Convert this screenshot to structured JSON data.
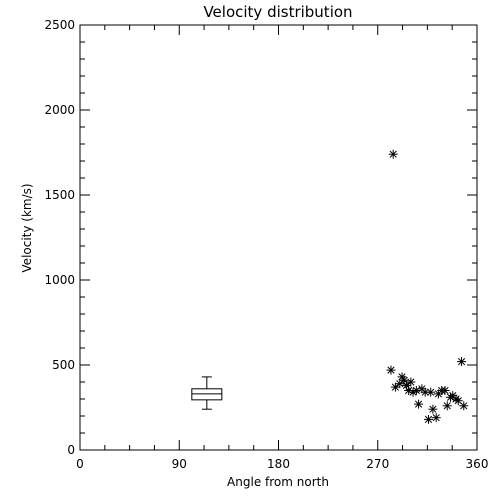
{
  "chart_data": {
    "type": "scatter",
    "title": "Velocity distribution",
    "xlabel": "Angle from north",
    "ylabel": "Velocity (km/s)",
    "xlim": [
      0,
      360
    ],
    "ylim": [
      0,
      2500
    ],
    "x_ticks": [
      0,
      90,
      180,
      270,
      360
    ],
    "y_ticks": [
      0,
      500,
      1000,
      1500,
      2000,
      2500
    ],
    "grid": false,
    "marker": "asterisk",
    "color": "#000000",
    "boxplot": {
      "x": 115,
      "min": 240,
      "q1": 295,
      "median": 330,
      "q3": 360,
      "max": 430
    },
    "points": [
      {
        "x": 284,
        "y": 1740
      },
      {
        "x": 282,
        "y": 470
      },
      {
        "x": 286,
        "y": 370
      },
      {
        "x": 290,
        "y": 390
      },
      {
        "x": 292,
        "y": 430
      },
      {
        "x": 294,
        "y": 410
      },
      {
        "x": 296,
        "y": 380
      },
      {
        "x": 298,
        "y": 350
      },
      {
        "x": 300,
        "y": 400
      },
      {
        "x": 302,
        "y": 340
      },
      {
        "x": 305,
        "y": 350
      },
      {
        "x": 307,
        "y": 270
      },
      {
        "x": 310,
        "y": 360
      },
      {
        "x": 313,
        "y": 340
      },
      {
        "x": 316,
        "y": 180
      },
      {
        "x": 318,
        "y": 340
      },
      {
        "x": 320,
        "y": 240
      },
      {
        "x": 323,
        "y": 190
      },
      {
        "x": 325,
        "y": 330
      },
      {
        "x": 328,
        "y": 350
      },
      {
        "x": 331,
        "y": 350
      },
      {
        "x": 333,
        "y": 260
      },
      {
        "x": 336,
        "y": 310
      },
      {
        "x": 338,
        "y": 320
      },
      {
        "x": 341,
        "y": 300
      },
      {
        "x": 343,
        "y": 290
      },
      {
        "x": 346,
        "y": 520
      },
      {
        "x": 348,
        "y": 260
      }
    ]
  }
}
